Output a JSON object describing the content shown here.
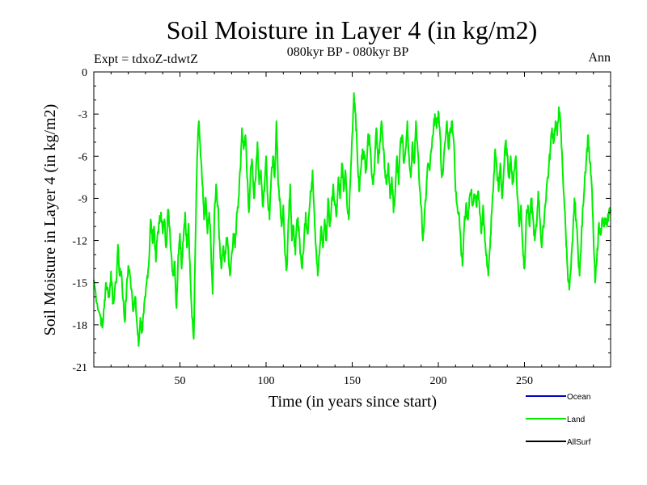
{
  "chart_data": {
    "type": "line",
    "title": "Soil Moisture in Layer 4 (in kg/m2)",
    "subtitle": "080kyr BP - 080kyr BP",
    "experiment_label": "Expt = tdxoZ-tdwtZ",
    "period_label": "Ann",
    "xlabel": "Time (in years since start)",
    "ylabel": "Soil Moisture in Layer 4 (in kg/m2)",
    "xlim": [
      0,
      300
    ],
    "ylim": [
      -21,
      0
    ],
    "x_ticks": [
      50,
      100,
      150,
      200,
      250
    ],
    "y_ticks": [
      0,
      -3,
      -6,
      -9,
      -12,
      -15,
      -18,
      -21
    ],
    "grid": false,
    "legend_position": "bottom-right",
    "series": [
      {
        "name": "Ocean",
        "color": "#0000cc",
        "values": []
      },
      {
        "name": "Land",
        "color": "#00ee00",
        "anchors": [
          [
            0,
            -14.8
          ],
          [
            2,
            -16.5
          ],
          [
            4,
            -17.5
          ],
          [
            5,
            -18.2
          ],
          [
            6,
            -16.8
          ],
          [
            7,
            -15.0
          ],
          [
            9,
            -16.0
          ],
          [
            10,
            -14.2
          ],
          [
            11,
            -16.5
          ],
          [
            13,
            -15.0
          ],
          [
            14,
            -12.3
          ],
          [
            15,
            -14.5
          ],
          [
            16,
            -14.2
          ],
          [
            17,
            -16.2
          ],
          [
            18,
            -17.8
          ],
          [
            19,
            -15.5
          ],
          [
            20,
            -13.8
          ],
          [
            21,
            -14.5
          ],
          [
            22,
            -15.5
          ],
          [
            23,
            -17.0
          ],
          [
            24,
            -16.0
          ],
          [
            25,
            -17.8
          ],
          [
            26,
            -19.5
          ],
          [
            27,
            -17.5
          ],
          [
            28,
            -18.5
          ],
          [
            29,
            -17.2
          ],
          [
            30,
            -16.0
          ],
          [
            31,
            -14.5
          ],
          [
            32,
            -13.5
          ],
          [
            33,
            -10.5
          ],
          [
            34,
            -12.0
          ],
          [
            35,
            -11.0
          ],
          [
            36,
            -13.5
          ],
          [
            37,
            -11.5
          ],
          [
            38,
            -10.8
          ],
          [
            39,
            -10.0
          ],
          [
            40,
            -11.5
          ],
          [
            41,
            -10.5
          ],
          [
            42,
            -12.5
          ],
          [
            43,
            -9.8
          ],
          [
            44,
            -11.0
          ],
          [
            45,
            -13.0
          ],
          [
            46,
            -14.5
          ],
          [
            47,
            -13.5
          ],
          [
            48,
            -16.8
          ],
          [
            49,
            -13.0
          ],
          [
            50,
            -11.5
          ],
          [
            51,
            -14.0
          ],
          [
            52,
            -12.0
          ],
          [
            53,
            -10.0
          ],
          [
            54,
            -12.5
          ],
          [
            55,
            -10.8
          ],
          [
            56,
            -14.5
          ],
          [
            57,
            -17.5
          ],
          [
            58,
            -19.0
          ],
          [
            59,
            -12.0
          ],
          [
            60,
            -6.0
          ],
          [
            61,
            -3.5
          ],
          [
            62,
            -6.0
          ],
          [
            63,
            -8.0
          ],
          [
            64,
            -10.5
          ],
          [
            65,
            -9.0
          ],
          [
            66,
            -11.5
          ],
          [
            67,
            -10.0
          ],
          [
            68,
            -12.5
          ],
          [
            69,
            -15.8
          ],
          [
            70,
            -10.0
          ],
          [
            71,
            -8.0
          ],
          [
            72,
            -9.5
          ],
          [
            73,
            -12.0
          ],
          [
            74,
            -14.0
          ],
          [
            75,
            -12.5
          ],
          [
            76,
            -13.5
          ],
          [
            77,
            -11.8
          ],
          [
            78,
            -12.5
          ],
          [
            79,
            -14.5
          ],
          [
            80,
            -13.0
          ],
          [
            81,
            -11.5
          ],
          [
            82,
            -12.5
          ],
          [
            83,
            -10.0
          ],
          [
            84,
            -9.0
          ],
          [
            85,
            -7.0
          ],
          [
            86,
            -4.0
          ],
          [
            87,
            -5.5
          ],
          [
            88,
            -4.5
          ],
          [
            89,
            -7.5
          ],
          [
            90,
            -10.0
          ],
          [
            91,
            -7.0
          ],
          [
            92,
            -6.5
          ],
          [
            93,
            -9.0
          ],
          [
            94,
            -7.5
          ],
          [
            95,
            -5.0
          ],
          [
            96,
            -8.0
          ],
          [
            97,
            -7.0
          ],
          [
            98,
            -9.5
          ],
          [
            99,
            -8.5
          ],
          [
            100,
            -6.0
          ],
          [
            101,
            -9.0
          ],
          [
            102,
            -10.5
          ],
          [
            103,
            -7.5
          ],
          [
            104,
            -6.0
          ],
          [
            105,
            -7.5
          ],
          [
            106,
            -3.5
          ],
          [
            107,
            -8.0
          ],
          [
            108,
            -9.0
          ],
          [
            109,
            -11.0
          ],
          [
            110,
            -9.5
          ],
          [
            111,
            -13.0
          ],
          [
            112,
            -14.0
          ],
          [
            113,
            -10.5
          ],
          [
            114,
            -8.0
          ],
          [
            115,
            -12.0
          ],
          [
            116,
            -11.0
          ],
          [
            117,
            -13.0
          ],
          [
            118,
            -10.5
          ],
          [
            119,
            -11.0
          ],
          [
            120,
            -13.0
          ],
          [
            121,
            -14.0
          ],
          [
            122,
            -12.0
          ],
          [
            123,
            -10.0
          ],
          [
            124,
            -11.5
          ],
          [
            125,
            -10.0
          ],
          [
            126,
            -8.5
          ],
          [
            127,
            -7.0
          ],
          [
            128,
            -10.0
          ],
          [
            129,
            -12.5
          ],
          [
            130,
            -14.5
          ],
          [
            131,
            -13.0
          ],
          [
            132,
            -11.0
          ],
          [
            133,
            -12.5
          ],
          [
            134,
            -10.5
          ],
          [
            135,
            -12.0
          ],
          [
            136,
            -9.0
          ],
          [
            137,
            -11.0
          ],
          [
            138,
            -9.5
          ],
          [
            139,
            -8.0
          ],
          [
            140,
            -9.5
          ],
          [
            141,
            -10.0
          ],
          [
            142,
            -7.5
          ],
          [
            143,
            -9.0
          ],
          [
            144,
            -6.5
          ],
          [
            145,
            -8.5
          ],
          [
            146,
            -7.0
          ],
          [
            147,
            -9.5
          ],
          [
            148,
            -10.5
          ],
          [
            149,
            -7.5
          ],
          [
            150,
            -4.5
          ],
          [
            151,
            -1.5
          ],
          [
            152,
            -3.0
          ],
          [
            153,
            -6.0
          ],
          [
            154,
            -8.5
          ],
          [
            155,
            -7.0
          ],
          [
            156,
            -5.5
          ],
          [
            157,
            -6.0
          ],
          [
            158,
            -7.0
          ],
          [
            159,
            -5.0
          ],
          [
            160,
            -4.5
          ],
          [
            161,
            -6.5
          ],
          [
            162,
            -8.0
          ],
          [
            163,
            -6.5
          ],
          [
            164,
            -4.0
          ],
          [
            165,
            -6.5
          ],
          [
            166,
            -5.0
          ],
          [
            167,
            -3.5
          ],
          [
            168,
            -5.5
          ],
          [
            169,
            -7.0
          ],
          [
            170,
            -8.0
          ],
          [
            171,
            -6.5
          ],
          [
            172,
            -9.0
          ],
          [
            173,
            -7.5
          ],
          [
            174,
            -10.0
          ],
          [
            175,
            -8.5
          ],
          [
            176,
            -6.0
          ],
          [
            177,
            -8.0
          ],
          [
            178,
            -5.0
          ],
          [
            179,
            -4.5
          ],
          [
            180,
            -6.5
          ],
          [
            181,
            -5.5
          ],
          [
            182,
            -3.5
          ],
          [
            183,
            -6.0
          ],
          [
            184,
            -7.5
          ],
          [
            185,
            -5.0
          ],
          [
            186,
            -6.5
          ],
          [
            187,
            -3.5
          ],
          [
            188,
            -5.5
          ],
          [
            189,
            -8.0
          ],
          [
            190,
            -9.5
          ],
          [
            191,
            -12.0
          ],
          [
            192,
            -10.0
          ],
          [
            193,
            -8.5
          ],
          [
            194,
            -6.5
          ],
          [
            195,
            -7.0
          ],
          [
            196,
            -5.5
          ],
          [
            197,
            -4.5
          ],
          [
            198,
            -3.0
          ],
          [
            199,
            -4.0
          ],
          [
            200,
            -2.8
          ],
          [
            201,
            -4.5
          ],
          [
            202,
            -7.5
          ],
          [
            203,
            -6.5
          ],
          [
            204,
            -5.0
          ],
          [
            205,
            -3.5
          ],
          [
            206,
            -5.5
          ],
          [
            207,
            -4.0
          ],
          [
            208,
            -3.5
          ],
          [
            209,
            -5.0
          ],
          [
            210,
            -8.5
          ],
          [
            211,
            -9.5
          ],
          [
            212,
            -10.0
          ],
          [
            213,
            -12.0
          ],
          [
            214,
            -13.8
          ],
          [
            215,
            -11.0
          ],
          [
            216,
            -9.5
          ],
          [
            217,
            -10.5
          ],
          [
            218,
            -9.0
          ],
          [
            219,
            -8.5
          ],
          [
            220,
            -9.5
          ],
          [
            221,
            -8.8
          ],
          [
            222,
            -9.5
          ],
          [
            223,
            -8.5
          ],
          [
            224,
            -10.0
          ],
          [
            225,
            -11.5
          ],
          [
            226,
            -9.5
          ],
          [
            227,
            -12.0
          ],
          [
            228,
            -13.0
          ],
          [
            229,
            -14.5
          ],
          [
            230,
            -12.5
          ],
          [
            231,
            -10.0
          ],
          [
            232,
            -8.0
          ],
          [
            233,
            -5.5
          ],
          [
            234,
            -7.0
          ],
          [
            235,
            -8.5
          ],
          [
            236,
            -6.5
          ],
          [
            237,
            -9.0
          ],
          [
            238,
            -7.0
          ],
          [
            239,
            -5.0
          ],
          [
            240,
            -6.0
          ],
          [
            241,
            -7.5
          ],
          [
            242,
            -6.0
          ],
          [
            243,
            -8.0
          ],
          [
            244,
            -7.0
          ],
          [
            245,
            -6.0
          ],
          [
            246,
            -9.0
          ],
          [
            247,
            -11.0
          ],
          [
            248,
            -9.5
          ],
          [
            249,
            -12.5
          ],
          [
            250,
            -14.0
          ],
          [
            251,
            -10.5
          ],
          [
            252,
            -9.5
          ],
          [
            253,
            -11.0
          ],
          [
            254,
            -9.0
          ],
          [
            255,
            -10.5
          ],
          [
            256,
            -12.0
          ],
          [
            257,
            -11.0
          ],
          [
            258,
            -8.5
          ],
          [
            259,
            -10.5
          ],
          [
            260,
            -12.5
          ],
          [
            261,
            -11.0
          ],
          [
            262,
            -9.5
          ],
          [
            263,
            -8.0
          ],
          [
            264,
            -7.0
          ],
          [
            265,
            -5.5
          ],
          [
            266,
            -4.0
          ],
          [
            267,
            -5.0
          ],
          [
            268,
            -3.5
          ],
          [
            269,
            -4.5
          ],
          [
            270,
            -2.5
          ],
          [
            271,
            -4.0
          ],
          [
            272,
            -6.5
          ],
          [
            273,
            -9.0
          ],
          [
            274,
            -11.5
          ],
          [
            275,
            -14.0
          ],
          [
            276,
            -15.5
          ],
          [
            277,
            -14.0
          ],
          [
            278,
            -12.0
          ],
          [
            279,
            -9.0
          ],
          [
            280,
            -10.5
          ],
          [
            281,
            -12.5
          ],
          [
            282,
            -14.5
          ],
          [
            283,
            -12.0
          ],
          [
            284,
            -9.5
          ],
          [
            285,
            -7.5
          ],
          [
            286,
            -6.0
          ],
          [
            287,
            -4.5
          ],
          [
            288,
            -6.5
          ],
          [
            289,
            -8.0
          ],
          [
            290,
            -11.5
          ],
          [
            291,
            -15.0
          ],
          [
            292,
            -13.5
          ],
          [
            293,
            -11.0
          ],
          [
            294,
            -11.5
          ],
          [
            295,
            -10.5
          ],
          [
            296,
            -11.0
          ],
          [
            297,
            -10.5
          ],
          [
            298,
            -11.0
          ],
          [
            299,
            -10.0
          ],
          [
            300,
            -9.8
          ]
        ]
      },
      {
        "name": "AllSurf",
        "color": "#000000",
        "values": []
      }
    ]
  }
}
